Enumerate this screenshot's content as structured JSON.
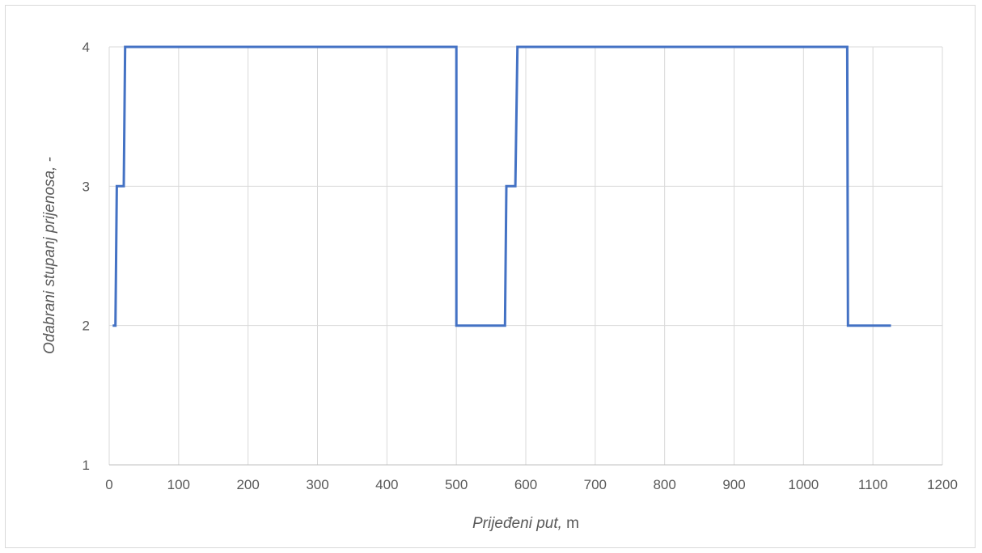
{
  "chart_data": {
    "type": "line",
    "title": "",
    "xlabel": "Prijeđeni put,",
    "xlabel_unit": " m",
    "ylabel": "Odabrani stupanj prijenosa, -",
    "xlim": [
      0,
      1200
    ],
    "ylim": [
      1,
      4
    ],
    "xticks": [
      0,
      100,
      200,
      300,
      400,
      500,
      600,
      700,
      800,
      900,
      1000,
      1100,
      1200
    ],
    "yticks": [
      1,
      2,
      3,
      4
    ],
    "grid": true,
    "legend": "none",
    "series": [
      {
        "color": "#4472c4",
        "x": [
          5,
          9,
          11,
          21,
          23,
          500,
          500,
          570,
          572,
          585,
          588,
          1063,
          1064,
          1126
        ],
        "y": [
          2,
          2,
          3,
          3,
          4,
          4,
          2,
          2,
          3,
          3,
          4,
          4,
          2,
          2
        ]
      }
    ]
  }
}
